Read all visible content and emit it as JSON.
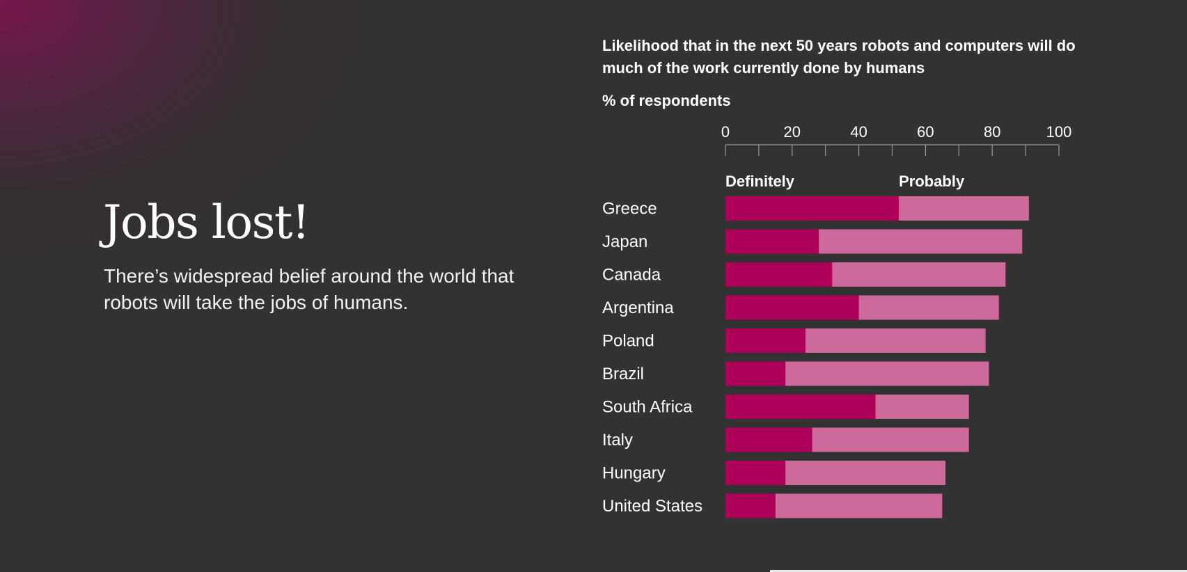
{
  "hero": {
    "title": "Jobs lost!",
    "subtitle": "There’s widespread belief around the world that robots will take the jobs of humans."
  },
  "colors": {
    "background": "#323232",
    "definitely": "#ad0058",
    "probably": "#cd6a9c",
    "axis": "#9a9a9a",
    "text": "#ffffff"
  },
  "chart_data": {
    "type": "bar",
    "orientation": "horizontal",
    "stacked": true,
    "title": "Likelihood that in the next 50 years robots and computers will do much of the work currently done by humans",
    "unit_label": "% of respondents",
    "xlim": [
      0,
      100
    ],
    "x_ticks": [
      0,
      20,
      40,
      60,
      80,
      100
    ],
    "x_minor_step": 10,
    "axis_position": "top",
    "grid": false,
    "categories": [
      "Greece",
      "Japan",
      "Canada",
      "Argentina",
      "Poland",
      "Brazil",
      "South Africa",
      "Italy",
      "Hungary",
      "United States"
    ],
    "series": [
      {
        "name": "Definitely",
        "values": [
          52,
          28,
          32,
          40,
          24,
          18,
          45,
          26,
          18,
          15
        ]
      },
      {
        "name": "Probably",
        "values": [
          39,
          61,
          52,
          42,
          54,
          61,
          28,
          47,
          48,
          50
        ]
      }
    ]
  }
}
